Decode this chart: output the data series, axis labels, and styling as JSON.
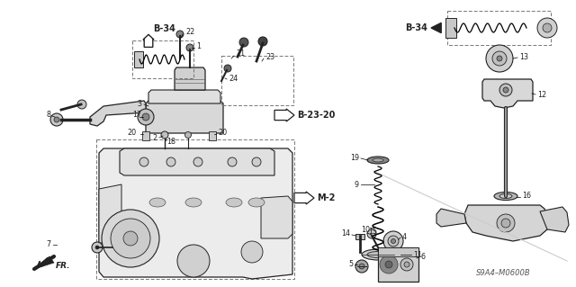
{
  "fig_width": 6.4,
  "fig_height": 3.19,
  "dpi": 100,
  "background": "#ffffff",
  "labels": {
    "B34_left": "B-34",
    "B34_right": "B-34",
    "B2320": "B-23-20",
    "M2": "M-2",
    "FR": "FR.",
    "part_code": "S9A4–M0600B"
  }
}
